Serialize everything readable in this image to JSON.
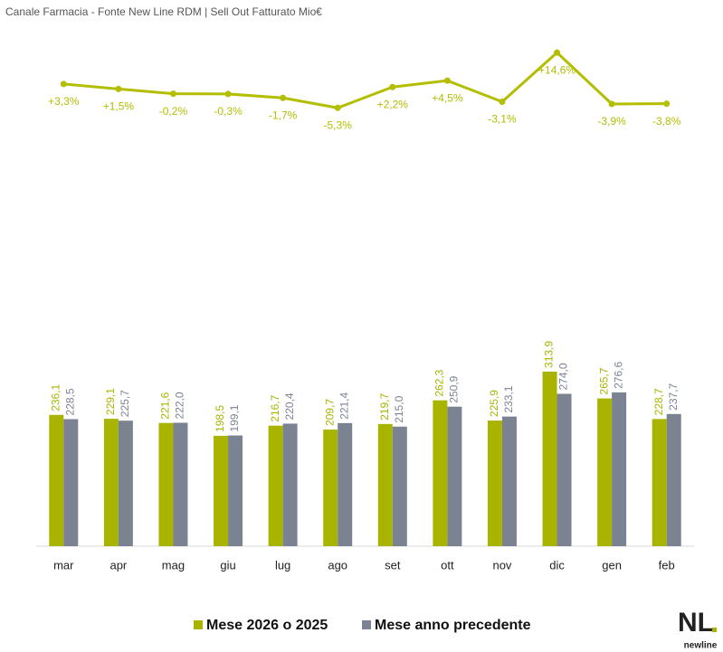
{
  "chart_data": [
    {
      "type": "line",
      "title": "Canale Farmacia - Fonte New Line RDM | Sell Out Fatturato Mio€",
      "categories": [
        "mar",
        "apr",
        "mag",
        "giu",
        "lug",
        "ago",
        "set",
        "ott",
        "nov",
        "dic",
        "gen",
        "feb"
      ],
      "values": [
        3.3,
        1.5,
        -0.2,
        -0.3,
        -1.7,
        -5.3,
        2.2,
        4.5,
        -3.1,
        14.6,
        -3.9,
        -3.8
      ],
      "value_labels": [
        "+3,3%",
        "+1,5%",
        "-0,2%",
        "-0,3%",
        "-1,7%",
        "-5,3%",
        "+2,2%",
        "+4,5%",
        "-3,1%",
        "+14,6%",
        "-3,9%",
        "-3,8%"
      ],
      "color": "#b3be00"
    },
    {
      "type": "bar",
      "categories": [
        "mar",
        "apr",
        "mag",
        "giu",
        "lug",
        "ago",
        "set",
        "ott",
        "nov",
        "dic",
        "gen",
        "feb"
      ],
      "series": [
        {
          "name": "Mese 2026 o 2025",
          "color": "#a9b400",
          "values": [
            236.1,
            229.1,
            221.6,
            198.5,
            216.7,
            209.7,
            219.7,
            262.3,
            225.9,
            313.9,
            265.7,
            228.7
          ],
          "value_labels": [
            "236,1",
            "229,1",
            "221,6",
            "198,5",
            "216,7",
            "209,7",
            "219,7",
            "262,3",
            "225,9",
            "313,9",
            "265,7",
            "228,7"
          ]
        },
        {
          "name": "Mese anno precedente",
          "color": "#7b8393",
          "values": [
            228.5,
            225.7,
            222.0,
            199.1,
            220.4,
            221.4,
            215.0,
            250.9,
            233.1,
            274.0,
            276.6,
            237.7
          ],
          "value_labels": [
            "228,5",
            "225,7",
            "222,0",
            "199,1",
            "220,4",
            "221,4",
            "215,0",
            "250,9",
            "233,1",
            "274,0",
            "276,6",
            "237,7"
          ]
        }
      ],
      "legend": "bottom"
    }
  ],
  "logo": {
    "mark": "NL",
    "text": "newline"
  }
}
